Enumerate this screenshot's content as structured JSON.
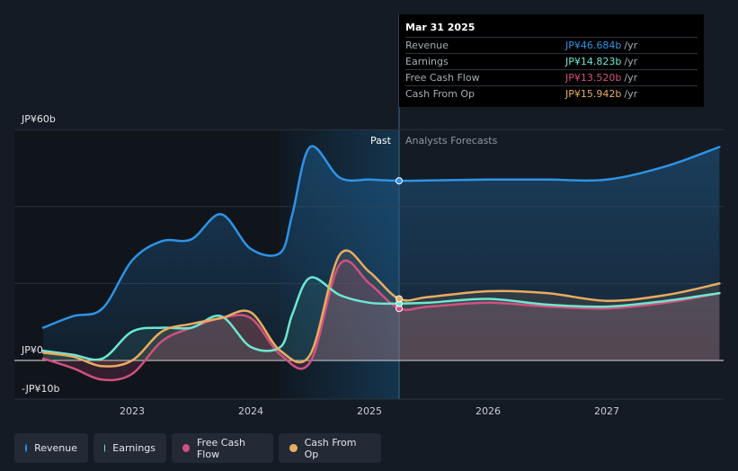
{
  "tooltip": {
    "date": "Mar 31 2025",
    "rows": [
      {
        "name": "Revenue",
        "value": "JP¥46.684b",
        "unit": "/yr",
        "color": "#2e93e6"
      },
      {
        "name": "Earnings",
        "value": "JP¥14.823b",
        "unit": "/yr",
        "color": "#6ee6d2"
      },
      {
        "name": "Free Cash Flow",
        "value": "JP¥13.520b",
        "unit": "/yr",
        "color": "#d1507f"
      },
      {
        "name": "Cash From Op",
        "value": "JP¥15.942b",
        "unit": "/yr",
        "color": "#e8ac62"
      }
    ]
  },
  "labels": {
    "past": "Past",
    "forecast": "Analysts Forecasts"
  },
  "legend": [
    {
      "name": "Revenue",
      "color": "#2e93e6"
    },
    {
      "name": "Earnings",
      "color": "#6ee6d2"
    },
    {
      "name": "Free Cash Flow",
      "color": "#d1507f"
    },
    {
      "name": "Cash From Op",
      "color": "#e8ac62"
    }
  ],
  "chart_data": {
    "type": "area",
    "unit": "JP¥ billions",
    "y_labels": [
      "JP¥60b",
      "JP¥0",
      "-JP¥10b"
    ],
    "ylim": [
      -10,
      60
    ],
    "x_ticks": [
      "2023",
      "2024",
      "2025",
      "2026",
      "2027"
    ],
    "past_end": 2025.25,
    "series": [
      {
        "name": "Revenue",
        "color": "#2e93e6",
        "points": [
          [
            2022.25,
            8.5
          ],
          [
            2022.5,
            11.5
          ],
          [
            2022.75,
            13.5
          ],
          [
            2023.0,
            26
          ],
          [
            2023.25,
            31
          ],
          [
            2023.5,
            31.5
          ],
          [
            2023.75,
            38
          ],
          [
            2024.0,
            29
          ],
          [
            2024.25,
            28
          ],
          [
            2024.35,
            38
          ],
          [
            2024.5,
            55.5
          ],
          [
            2024.75,
            47.5
          ],
          [
            2025.0,
            47
          ],
          [
            2025.25,
            46.7
          ],
          [
            2025.5,
            46.8
          ],
          [
            2026.0,
            47
          ],
          [
            2026.5,
            47
          ],
          [
            2027.0,
            47
          ],
          [
            2027.5,
            50.5
          ],
          [
            2027.95,
            55.5
          ]
        ]
      },
      {
        "name": "Earnings",
        "color": "#6ee6d2",
        "points": [
          [
            2022.25,
            2.5
          ],
          [
            2022.5,
            1.5
          ],
          [
            2022.75,
            0.5
          ],
          [
            2023.0,
            7.5
          ],
          [
            2023.25,
            8.5
          ],
          [
            2023.5,
            8.5
          ],
          [
            2023.75,
            11.5
          ],
          [
            2024.0,
            3.5
          ],
          [
            2024.25,
            3.5
          ],
          [
            2024.35,
            12
          ],
          [
            2024.5,
            21.5
          ],
          [
            2024.75,
            17
          ],
          [
            2025.0,
            15
          ],
          [
            2025.25,
            14.8
          ],
          [
            2025.5,
            15
          ],
          [
            2026.0,
            16
          ],
          [
            2026.5,
            14.5
          ],
          [
            2027.0,
            14
          ],
          [
            2027.5,
            15.5
          ],
          [
            2027.95,
            17.5
          ]
        ]
      },
      {
        "name": "Free Cash Flow",
        "color": "#d1507f",
        "points": [
          [
            2022.25,
            0.5
          ],
          [
            2022.5,
            -2
          ],
          [
            2022.75,
            -5
          ],
          [
            2023.0,
            -3.5
          ],
          [
            2023.25,
            5
          ],
          [
            2023.5,
            8.5
          ],
          [
            2023.75,
            11
          ],
          [
            2024.0,
            11
          ],
          [
            2024.25,
            1.5
          ],
          [
            2024.5,
            -0.5
          ],
          [
            2024.75,
            25
          ],
          [
            2025.0,
            20
          ],
          [
            2025.25,
            13.5
          ],
          [
            2025.5,
            14
          ],
          [
            2026.0,
            15
          ],
          [
            2026.5,
            14
          ],
          [
            2027.0,
            13.5
          ],
          [
            2027.5,
            15
          ],
          [
            2027.95,
            17.5
          ]
        ]
      },
      {
        "name": "Cash From Op",
        "color": "#e8ac62",
        "points": [
          [
            2022.25,
            2
          ],
          [
            2022.5,
            1
          ],
          [
            2022.75,
            -1.5
          ],
          [
            2023.0,
            0
          ],
          [
            2023.25,
            7.5
          ],
          [
            2023.5,
            9.5
          ],
          [
            2023.75,
            11
          ],
          [
            2024.0,
            12.5
          ],
          [
            2024.25,
            2.5
          ],
          [
            2024.5,
            1.5
          ],
          [
            2024.75,
            27.5
          ],
          [
            2025.0,
            23
          ],
          [
            2025.25,
            16
          ],
          [
            2025.5,
            16.5
          ],
          [
            2026.0,
            18
          ],
          [
            2026.5,
            17.5
          ],
          [
            2027.0,
            15.5
          ],
          [
            2027.5,
            17
          ],
          [
            2027.95,
            20
          ]
        ]
      }
    ]
  }
}
